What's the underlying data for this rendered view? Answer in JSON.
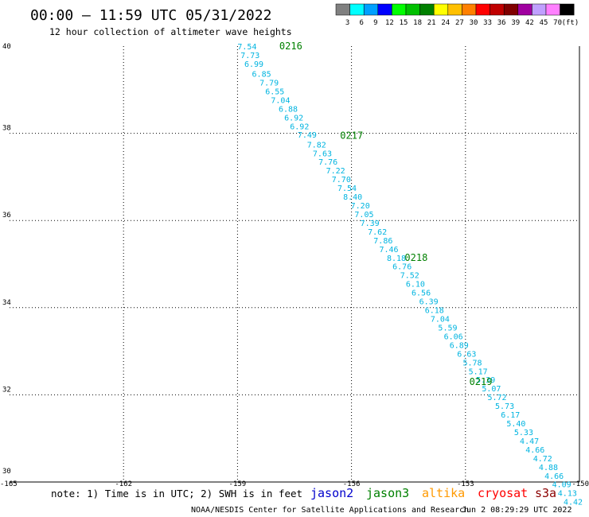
{
  "header": {
    "title": "00:00 – 11:59 UTC 05/31/2022",
    "subtitle": "12 hour collection of altimeter wave heights"
  },
  "legend": {
    "colors": [
      "#808080",
      "#00ffff",
      "#00a0ff",
      "#0000ff",
      "#00ff00",
      "#00c000",
      "#008000",
      "#ffff00",
      "#ffc000",
      "#ff8000",
      "#ff0000",
      "#c00000",
      "#800000",
      "#a000a0",
      "#c0a0ff",
      "#ff80ff",
      "#000000"
    ],
    "labels": [
      "3",
      "6",
      "9",
      "12",
      "15",
      "18",
      "21",
      "24",
      "27",
      "30",
      "33",
      "36",
      "39",
      "42",
      "45",
      "70",
      "(ft)"
    ]
  },
  "footer": {
    "note": "note: 1) Time is in UTC; 2) SWH is in feet",
    "satellites": [
      {
        "name": "jason2",
        "color": "#0000cc"
      },
      {
        "name": "jason3",
        "color": "#008000"
      },
      {
        "name": "altika",
        "color": "#ff9900"
      },
      {
        "name": "cryosat",
        "color": "#ff0000"
      },
      {
        "name": "s3a",
        "color": "#8b0000"
      }
    ],
    "credit": "NOAA/NESDIS Center for Satellite Applications and Research",
    "timestamp": "Jun  2 08:29:29 UTC 2022"
  },
  "chart_data": {
    "type": "scatter",
    "title": "00:00 – 11:59 UTC 05/31/2022",
    "subtitle": "12 hour collection of altimeter wave heights",
    "xlabel": "",
    "ylabel": "",
    "xlim": [
      -165,
      -150
    ],
    "ylim": [
      30,
      40
    ],
    "x_ticks": [
      "-165",
      "-162",
      "-159",
      "-156",
      "-153",
      "-150"
    ],
    "y_ticks": [
      "40",
      "38",
      "36",
      "34",
      "32",
      "30"
    ],
    "grid": true,
    "pass_labels": [
      {
        "label": "0216",
        "lon": -157.9,
        "lat": 40.0
      },
      {
        "label": "0217",
        "lon": -156.3,
        "lat": 37.95
      },
      {
        "label": "0218",
        "lon": -154.6,
        "lat": 35.15
      },
      {
        "label": "0219",
        "lon": -152.9,
        "lat": 32.3
      }
    ],
    "points": [
      {
        "lon": -159.0,
        "lat": 40.0,
        "swh": "7.54"
      },
      {
        "lon": -158.92,
        "lat": 39.8,
        "swh": "7.73"
      },
      {
        "lon": -158.82,
        "lat": 39.6,
        "swh": "6.99"
      },
      {
        "lon": -158.62,
        "lat": 39.37,
        "swh": "6.85"
      },
      {
        "lon": -158.42,
        "lat": 39.17,
        "swh": "7.79"
      },
      {
        "lon": -158.27,
        "lat": 38.97,
        "swh": "6.55"
      },
      {
        "lon": -158.12,
        "lat": 38.77,
        "swh": "7.04"
      },
      {
        "lon": -157.92,
        "lat": 38.57,
        "swh": "6.88"
      },
      {
        "lon": -157.77,
        "lat": 38.37,
        "swh": "6.92"
      },
      {
        "lon": -157.62,
        "lat": 38.17,
        "swh": "6.92"
      },
      {
        "lon": -157.42,
        "lat": 37.97,
        "swh": "7.49"
      },
      {
        "lon": -157.17,
        "lat": 37.75,
        "swh": "7.82"
      },
      {
        "lon": -157.02,
        "lat": 37.55,
        "swh": "7.63"
      },
      {
        "lon": -156.87,
        "lat": 37.35,
        "swh": "7.76"
      },
      {
        "lon": -156.67,
        "lat": 37.15,
        "swh": "7.22"
      },
      {
        "lon": -156.52,
        "lat": 36.95,
        "swh": "7.70"
      },
      {
        "lon": -156.37,
        "lat": 36.75,
        "swh": "7.54"
      },
      {
        "lon": -156.22,
        "lat": 36.55,
        "swh": "8.40"
      },
      {
        "lon": -156.02,
        "lat": 36.35,
        "swh": "7.20"
      },
      {
        "lon": -155.92,
        "lat": 36.15,
        "swh": "7.05"
      },
      {
        "lon": -155.77,
        "lat": 35.95,
        "swh": "7.39"
      },
      {
        "lon": -155.57,
        "lat": 35.75,
        "swh": "7.62"
      },
      {
        "lon": -155.42,
        "lat": 35.55,
        "swh": "7.86"
      },
      {
        "lon": -155.27,
        "lat": 35.35,
        "swh": "7.46"
      },
      {
        "lon": -155.07,
        "lat": 35.15,
        "swh": "8.18"
      },
      {
        "lon": -154.92,
        "lat": 34.95,
        "swh": "6.76"
      },
      {
        "lon": -154.72,
        "lat": 34.75,
        "swh": "7.52"
      },
      {
        "lon": -154.57,
        "lat": 34.55,
        "swh": "6.10"
      },
      {
        "lon": -154.42,
        "lat": 34.35,
        "swh": "6.56"
      },
      {
        "lon": -154.22,
        "lat": 34.15,
        "swh": "6.39"
      },
      {
        "lon": -154.07,
        "lat": 33.95,
        "swh": "6.18"
      },
      {
        "lon": -153.92,
        "lat": 33.75,
        "swh": "7.04"
      },
      {
        "lon": -153.72,
        "lat": 33.55,
        "swh": "5.59"
      },
      {
        "lon": -153.57,
        "lat": 33.35,
        "swh": "6.06"
      },
      {
        "lon": -153.42,
        "lat": 33.15,
        "swh": "6.89"
      },
      {
        "lon": -153.22,
        "lat": 32.95,
        "swh": "6.63"
      },
      {
        "lon": -153.07,
        "lat": 32.75,
        "swh": "5.78"
      },
      {
        "lon": -152.92,
        "lat": 32.55,
        "swh": "5.17"
      },
      {
        "lon": -152.72,
        "lat": 32.35,
        "swh": "5.39"
      },
      {
        "lon": -152.57,
        "lat": 32.15,
        "swh": "5.07"
      },
      {
        "lon": -152.42,
        "lat": 31.95,
        "swh": "5.72"
      },
      {
        "lon": -152.22,
        "lat": 31.75,
        "swh": "5.73"
      },
      {
        "lon": -152.07,
        "lat": 31.55,
        "swh": "6.17"
      },
      {
        "lon": -151.92,
        "lat": 31.35,
        "swh": "5.40"
      },
      {
        "lon": -151.72,
        "lat": 31.15,
        "swh": "5.33"
      },
      {
        "lon": -151.57,
        "lat": 30.95,
        "swh": "4.47"
      },
      {
        "lon": -151.42,
        "lat": 30.75,
        "swh": "4.66"
      },
      {
        "lon": -151.22,
        "lat": 30.55,
        "swh": "4.72"
      },
      {
        "lon": -151.07,
        "lat": 30.35,
        "swh": "4.88"
      },
      {
        "lon": -150.92,
        "lat": 30.15,
        "swh": "4.66"
      },
      {
        "lon": -150.72,
        "lat": 29.95,
        "swh": "4.09"
      },
      {
        "lon": -150.57,
        "lat": 29.75,
        "swh": "4.13"
      },
      {
        "lon": -150.42,
        "lat": 29.55,
        "swh": "4.42"
      }
    ]
  }
}
